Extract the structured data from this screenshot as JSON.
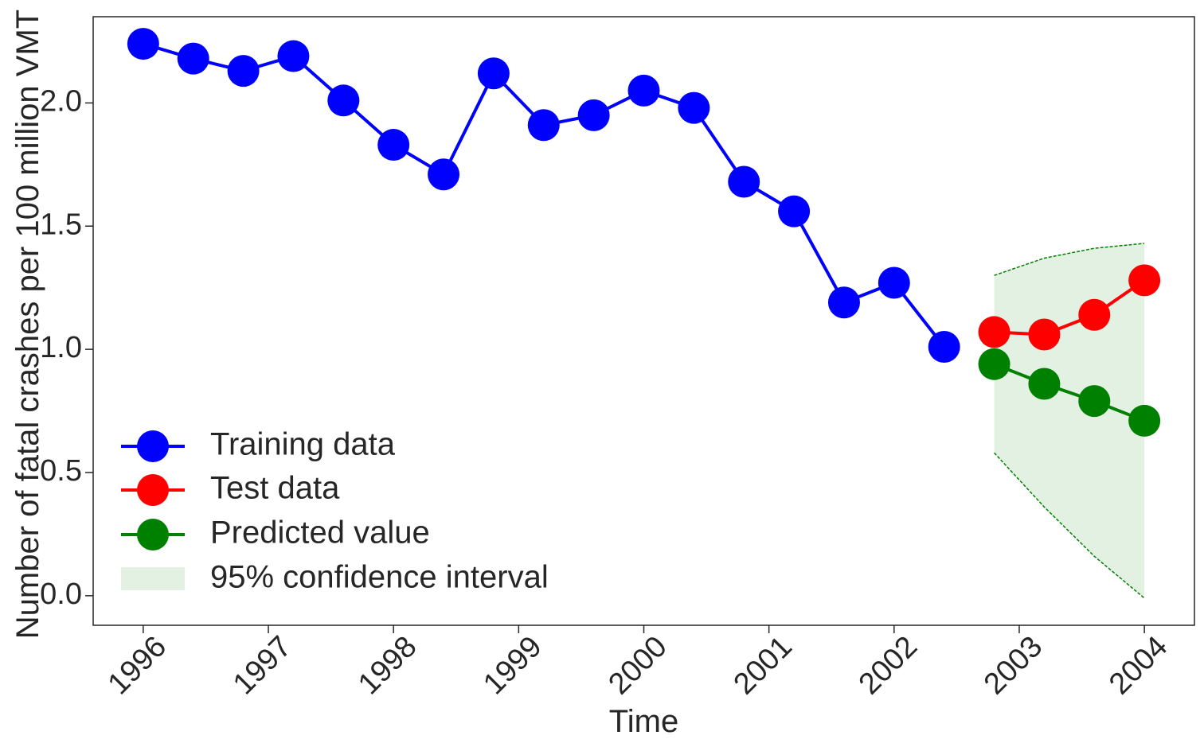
{
  "chart_data": {
    "type": "line",
    "title": "",
    "xlabel": "Time",
    "ylabel": "Number of fatal crashes per 100 million VMT",
    "xlim": [
      1995.6,
      2004.4
    ],
    "ylim": [
      -0.12,
      2.35
    ],
    "x_ticks": [
      {
        "value": 1996,
        "label": "1996"
      },
      {
        "value": 1997,
        "label": "1997"
      },
      {
        "value": 1998,
        "label": "1998"
      },
      {
        "value": 1999,
        "label": "1999"
      },
      {
        "value": 2000,
        "label": "2000"
      },
      {
        "value": 2001,
        "label": "2001"
      },
      {
        "value": 2002,
        "label": "2002"
      },
      {
        "value": 2003,
        "label": "2003"
      },
      {
        "value": 2004,
        "label": "2004"
      }
    ],
    "y_ticks": [
      {
        "value": 0.0,
        "label": "0.0"
      },
      {
        "value": 0.5,
        "label": "0.5"
      },
      {
        "value": 1.0,
        "label": "1.0"
      },
      {
        "value": 1.5,
        "label": "1.5"
      },
      {
        "value": 2.0,
        "label": "2.0"
      }
    ],
    "grid": false,
    "legend_position": "bottom-left",
    "series": [
      {
        "name": "Training data",
        "color": "#0000ff",
        "x": [
          1996.0,
          1996.4,
          1996.8,
          1997.2,
          1997.6,
          1998.0,
          1998.4,
          1998.8,
          1999.2,
          1999.6,
          2000.0,
          2000.4,
          2000.8,
          2001.2,
          2001.6,
          2002.0,
          2002.4
        ],
        "y": [
          2.24,
          2.18,
          2.13,
          2.19,
          2.01,
          1.83,
          1.71,
          2.12,
          1.91,
          1.95,
          2.05,
          1.98,
          1.68,
          1.56,
          1.19,
          1.27,
          1.01
        ]
      },
      {
        "name": "Test data",
        "color": "#ff0000",
        "x": [
          2002.8,
          2003.2,
          2003.6,
          2004.0
        ],
        "y": [
          1.07,
          1.06,
          1.14,
          1.28
        ]
      },
      {
        "name": "Predicted value",
        "color": "#008000",
        "x": [
          2002.8,
          2003.2,
          2003.6,
          2004.0
        ],
        "y": [
          0.94,
          0.86,
          0.79,
          0.71
        ]
      }
    ],
    "confidence_interval": {
      "name": "95% confidence interval",
      "color": "#008000",
      "x": [
        2002.8,
        2003.2,
        2003.6,
        2004.0
      ],
      "lower": [
        0.58,
        0.36,
        0.16,
        -0.01
      ],
      "upper": [
        1.3,
        1.37,
        1.41,
        1.43
      ]
    }
  }
}
